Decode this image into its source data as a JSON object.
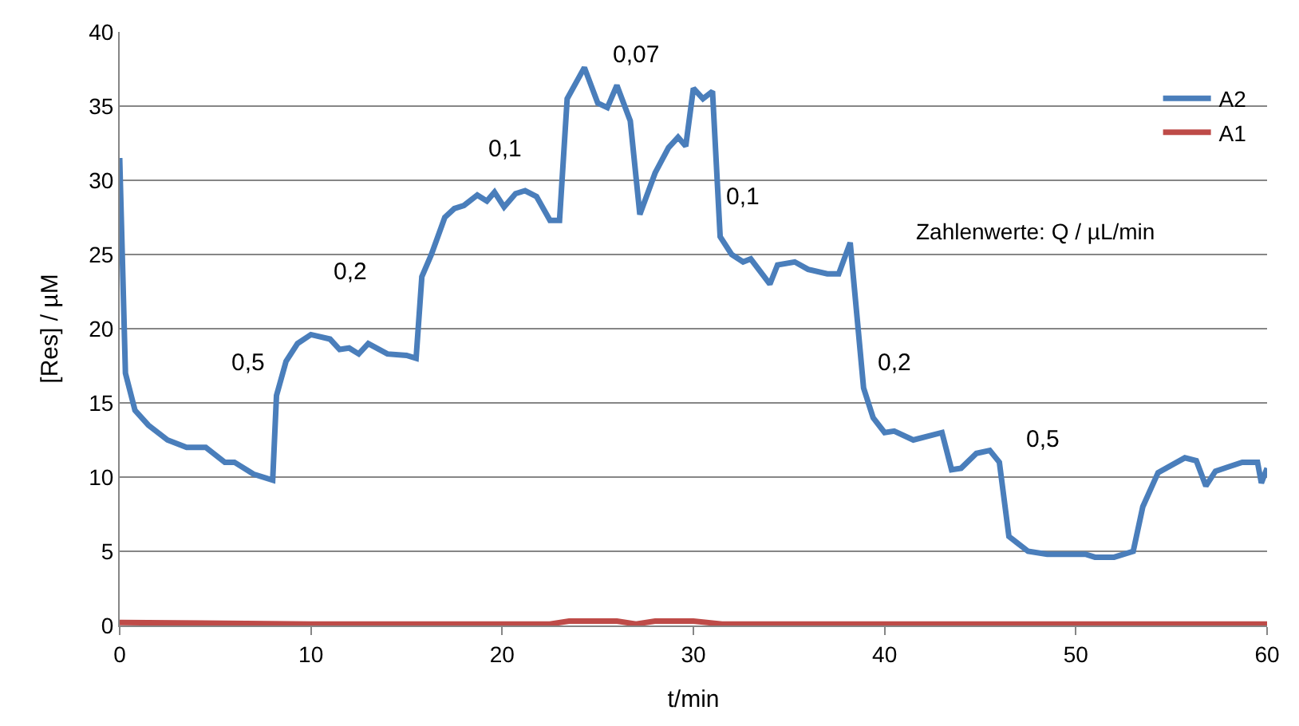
{
  "chart_data": {
    "type": "line",
    "xlabel": "t/min",
    "ylabel": "[Res] / µM",
    "xlim": [
      0,
      60
    ],
    "xticks": [
      0,
      10,
      20,
      30,
      40,
      50,
      60
    ],
    "ylim": [
      0,
      40
    ],
    "yticks": [
      0,
      5,
      10,
      15,
      20,
      25,
      30,
      35,
      40
    ],
    "grid": "y",
    "legend": "top right",
    "marker": "none",
    "line_style": "solid",
    "series": [
      {
        "name": "A2",
        "color": "#4a7ebb",
        "x": [
          0,
          0.3,
          0.8,
          1.5,
          2.5,
          3.5,
          4.5,
          5.5,
          6,
          7,
          8,
          8.2,
          8.7,
          9.3,
          10,
          11,
          11.5,
          12,
          12.5,
          13,
          14,
          15,
          15.5,
          15.8,
          16.3,
          17,
          17.5,
          18,
          18.7,
          19.2,
          19.6,
          20.1,
          20.7,
          21.2,
          21.8,
          22.5,
          23,
          23.4,
          24.3,
          25,
          25.5,
          26,
          26.7,
          27.2,
          28,
          28.7,
          29.2,
          29.6,
          30,
          30.5,
          31,
          31.4,
          32,
          32.6,
          33,
          34,
          34.4,
          35.3,
          36,
          37,
          37.6,
          38.2,
          38.9,
          39.4,
          40,
          40.5,
          41.5,
          43,
          43.5,
          44,
          44.8,
          45.5,
          46,
          46.5,
          47.5,
          48.5,
          50.5,
          51,
          52,
          53,
          53.5,
          54.3,
          55,
          55.7,
          56.3,
          56.8,
          57.3,
          58,
          58.7,
          59.5,
          59.7,
          60
        ],
        "values": [
          31.5,
          17,
          14.5,
          13.5,
          12.5,
          12,
          12,
          11,
          11,
          10.2,
          9.8,
          15.5,
          17.8,
          19,
          19.6,
          19.3,
          18.6,
          18.7,
          18.3,
          19,
          18.3,
          18.2,
          18,
          23.5,
          25,
          27.5,
          28.1,
          28.3,
          29,
          28.6,
          29.2,
          28.2,
          29.1,
          29.3,
          28.9,
          27.3,
          27.3,
          35.5,
          37.6,
          35.2,
          34.9,
          36.4,
          34,
          27.7,
          30.5,
          32.2,
          32.9,
          32.3,
          36.2,
          35.5,
          36,
          26.2,
          25,
          24.5,
          24.7,
          23,
          24.3,
          24.5,
          24,
          23.7,
          23.7,
          25.8,
          16,
          14,
          13,
          13.1,
          12.5,
          13,
          10.5,
          10.6,
          11.6,
          11.8,
          11,
          6,
          5,
          4.8,
          4.8,
          4.6,
          4.6,
          5,
          8,
          10.3,
          10.8,
          11.3,
          11.1,
          9.4,
          10.4,
          10.7,
          11,
          11,
          9.6,
          10.6
        ]
      },
      {
        "name": "A1",
        "color": "#be4b48",
        "x": [
          0,
          10,
          20,
          22.5,
          23.5,
          26,
          27,
          28,
          30,
          31.5,
          40,
          50,
          60
        ],
        "values": [
          0.2,
          0.1,
          0.1,
          0.1,
          0.3,
          0.3,
          0.1,
          0.3,
          0.3,
          0.1,
          0.1,
          0.1,
          0.1
        ]
      }
    ],
    "annotations": [
      "0,5",
      "0,2",
      "0,1",
      "0,07",
      "0,1",
      "0,2",
      "0,5",
      "Zahlenwerte: Q / µL/min"
    ]
  }
}
